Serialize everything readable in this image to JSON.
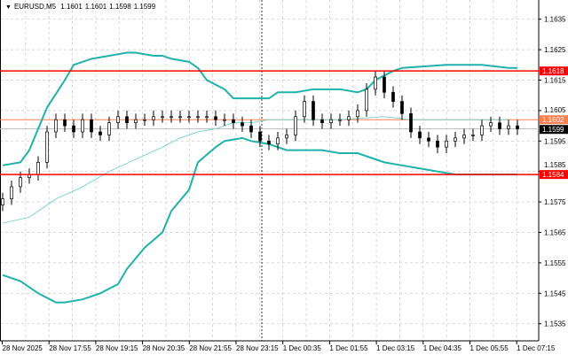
{
  "header": {
    "symbol": "EURUSD,M5",
    "open": "1.1601",
    "high": "1.1601",
    "low": "1.1598",
    "close": "1.1599"
  },
  "colors": {
    "background": "#ffffff",
    "grid": "#c8c8c8",
    "candle": "#000000",
    "bollinger": "#20b2aa",
    "moving_average": "#7fd4cc",
    "level_line": "#ff0000",
    "open_price_line": "#ff7f50",
    "bid_line": "#c0c0c0"
  },
  "price_axis": {
    "ticks": [
      "1.1635",
      "1.1625",
      "1.1615",
      "1.1605",
      "1.1595",
      "1.1585",
      "1.1575",
      "1.1565",
      "1.1555",
      "1.1545",
      "1.1535"
    ]
  },
  "time_axis": {
    "labels": [
      "28 Nov 2025",
      "28 Nov 17:55",
      "28 Nov 19:15",
      "28 Nov 20:35",
      "28 Nov 21:55",
      "28 Nov 23:15",
      "1 Dec 00:35",
      "1 Dec 01:55",
      "1 Dec 03:15",
      "1 Dec 04:35",
      "1 Dec 05:55",
      "1 Dec 07:15"
    ]
  },
  "levels": [
    {
      "price": 1.1618,
      "label": "1.1618",
      "color": "#ff0000",
      "kind": "resistance"
    },
    {
      "price": 1.1584,
      "label": "1.1584",
      "color": "#ff0000",
      "kind": "support"
    },
    {
      "price": 1.1602,
      "label": "1.1602",
      "color": "#ff7f50",
      "kind": "open"
    },
    {
      "price": 1.1599,
      "label": "1.1599",
      "color": "#000000",
      "kind": "bid"
    }
  ],
  "chart_data": {
    "type": "line",
    "title": "EURUSD,M5",
    "closes": [
      1.1576,
      1.158,
      1.1583,
      1.1584,
      1.1588,
      1.1598,
      1.1602,
      1.16,
      1.1598,
      1.1602,
      1.1598,
      1.1597,
      1.1601,
      1.1603,
      1.1601,
      1.1602,
      1.1602,
      1.1603,
      1.1603,
      1.1603,
      1.1603,
      1.1603,
      1.1603,
      1.1603,
      1.1602,
      1.1602,
      1.1601,
      1.16,
      1.1598,
      1.1595,
      1.1594,
      1.1596,
      1.1597,
      1.1603,
      1.1608,
      1.1602,
      1.1601,
      1.1602,
      1.1602,
      1.1603,
      1.1605,
      1.1612,
      1.1616,
      1.1611,
      1.1608,
      1.1604,
      1.1598,
      1.1596,
      1.1595,
      1.1593,
      1.1595,
      1.1596,
      1.1597,
      1.1597,
      1.16,
      1.1601,
      1.1599,
      1.16,
      1.1599
    ],
    "bollinger_upper": [
      [
        0,
        1.1587
      ],
      [
        2,
        1.1588
      ],
      [
        3,
        1.1592
      ],
      [
        5,
        1.1606
      ],
      [
        7,
        1.1615
      ],
      [
        8,
        1.162
      ],
      [
        10,
        1.1622
      ],
      [
        12,
        1.1623
      ],
      [
        14,
        1.1624
      ],
      [
        15,
        1.1624
      ],
      [
        17,
        1.1623
      ],
      [
        18,
        1.1623
      ],
      [
        19,
        1.1622
      ],
      [
        21,
        1.1621
      ],
      [
        22,
        1.1619
      ],
      [
        23,
        1.1615
      ],
      [
        25,
        1.1612
      ],
      [
        26,
        1.1609
      ],
      [
        29,
        1.1609
      ],
      [
        30,
        1.1609
      ],
      [
        31,
        1.1611
      ],
      [
        33,
        1.1611
      ],
      [
        35,
        1.1612
      ],
      [
        38,
        1.1612
      ],
      [
        40,
        1.1611
      ],
      [
        41,
        1.1612
      ],
      [
        42,
        1.1615
      ],
      [
        44,
        1.1618
      ],
      [
        45,
        1.1619
      ],
      [
        50,
        1.162
      ],
      [
        54,
        1.162
      ],
      [
        57,
        1.1619
      ],
      [
        58,
        1.1619
      ]
    ],
    "bollinger_lower": [
      [
        0,
        1.1551
      ],
      [
        2,
        1.1549
      ],
      [
        4,
        1.1545
      ],
      [
        6,
        1.1542
      ],
      [
        7,
        1.1542
      ],
      [
        9,
        1.1543
      ],
      [
        11,
        1.1545
      ],
      [
        13,
        1.1548
      ],
      [
        14,
        1.1553
      ],
      [
        16,
        1.156
      ],
      [
        18,
        1.1565
      ],
      [
        19,
        1.1572
      ],
      [
        21,
        1.1579
      ],
      [
        22,
        1.1588
      ],
      [
        24,
        1.1593
      ],
      [
        25,
        1.1595
      ],
      [
        27,
        1.1596
      ],
      [
        28,
        1.1595
      ],
      [
        30,
        1.1594
      ],
      [
        32,
        1.1592
      ],
      [
        34,
        1.1592
      ],
      [
        36,
        1.1592
      ],
      [
        38,
        1.1591
      ],
      [
        40,
        1.1591
      ],
      [
        41,
        1.159
      ],
      [
        43,
        1.1588
      ],
      [
        45,
        1.1587
      ],
      [
        47,
        1.1586
      ],
      [
        49,
        1.1585
      ],
      [
        51,
        1.1584
      ],
      [
        54,
        1.1584
      ],
      [
        58,
        1.1584
      ]
    ],
    "moving_average": [
      [
        0,
        1.1568
      ],
      [
        3,
        1.157
      ],
      [
        6,
        1.1576
      ],
      [
        9,
        1.158
      ],
      [
        12,
        1.1585
      ],
      [
        15,
        1.1589
      ],
      [
        18,
        1.1593
      ],
      [
        20,
        1.1596
      ],
      [
        22,
        1.1598
      ],
      [
        24,
        1.1599
      ],
      [
        26,
        1.1601
      ],
      [
        28,
        1.1601
      ],
      [
        30,
        1.1602
      ],
      [
        33,
        1.1602
      ],
      [
        38,
        1.1602
      ],
      [
        43,
        1.1603
      ],
      [
        46,
        1.1602
      ],
      [
        50,
        1.1602
      ],
      [
        54,
        1.1602
      ],
      [
        57,
        1.1602
      ]
    ],
    "ylim": [
      1.153,
      1.164
    ],
    "grid": true
  }
}
